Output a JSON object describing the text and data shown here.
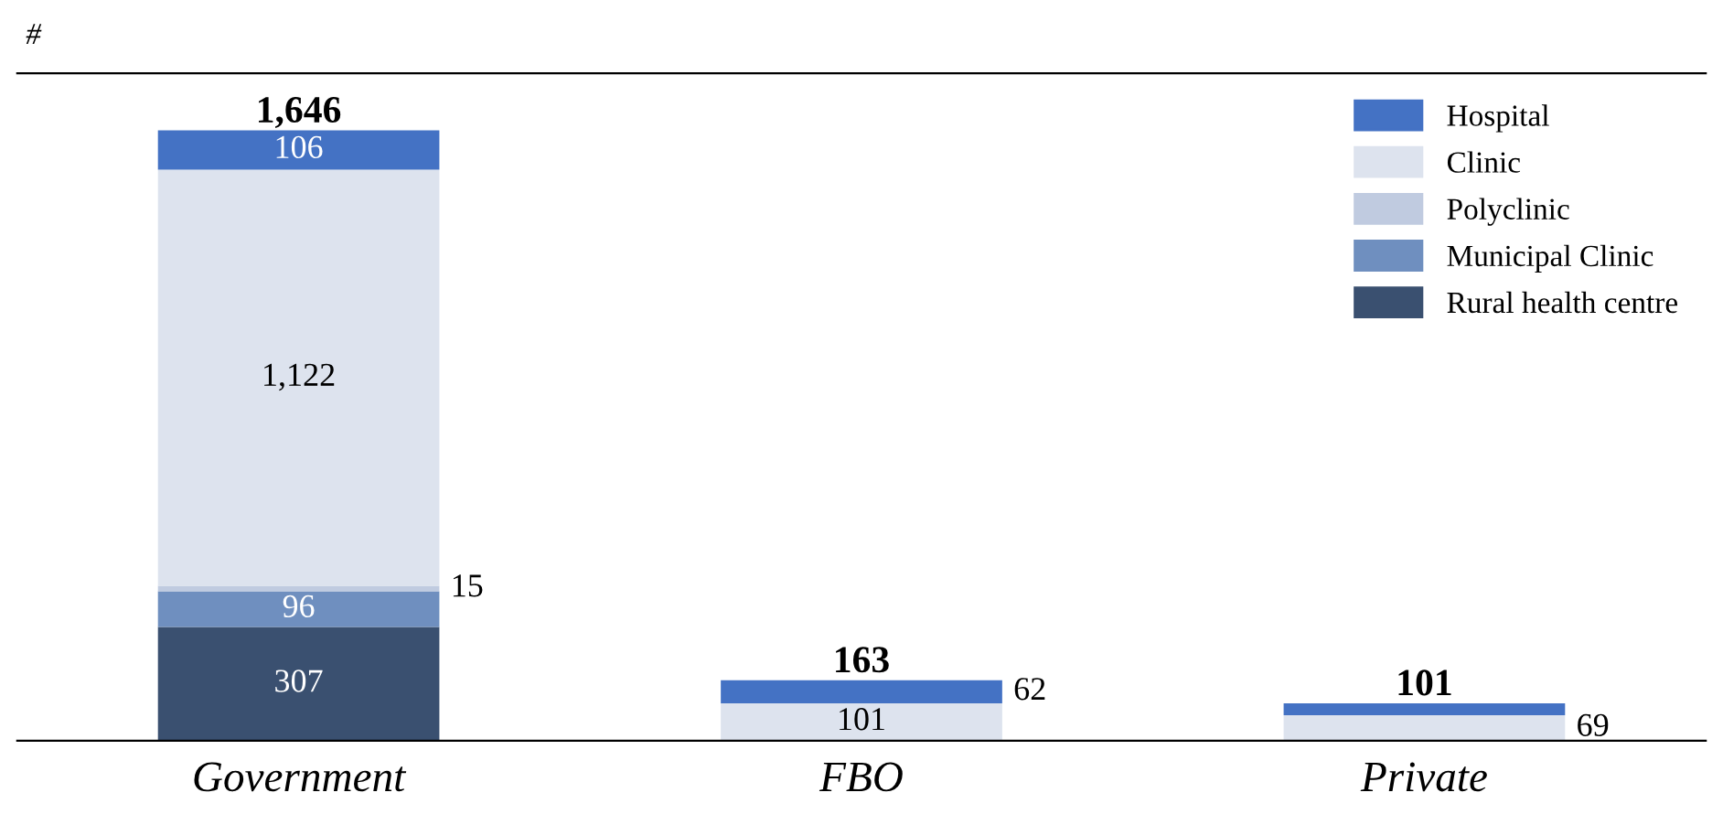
{
  "chart_data": {
    "type": "bar",
    "stacked": true,
    "ylabel": "#",
    "categories": [
      "Government",
      "FBO",
      "Private"
    ],
    "series": [
      {
        "name": "Rural health centre",
        "color": "#3a5070",
        "values": [
          307,
          null,
          null
        ],
        "value_labels": [
          "307",
          null,
          null
        ]
      },
      {
        "name": "Municipal Clinic",
        "color": "#6f8fbf",
        "values": [
          96,
          null,
          null
        ],
        "value_labels": [
          "96",
          null,
          null
        ]
      },
      {
        "name": "Polyclinic",
        "color": "#c0cbe0",
        "values": [
          15,
          null,
          null
        ],
        "value_labels": [
          "15",
          null,
          null
        ]
      },
      {
        "name": "Clinic",
        "color": "#dde3ee",
        "values": [
          1122,
          101,
          69
        ],
        "value_labels": [
          "1,122",
          "101",
          "69"
        ]
      },
      {
        "name": "Hospital",
        "color": "#4472c4",
        "values": [
          106,
          62,
          32
        ],
        "value_labels": [
          "106",
          "62",
          null
        ]
      }
    ],
    "totals": [
      "1,646",
      "163",
      "101"
    ],
    "ylim": [
      0,
      1800
    ],
    "tick_labels": "x",
    "grid": false,
    "legend": "top right"
  }
}
